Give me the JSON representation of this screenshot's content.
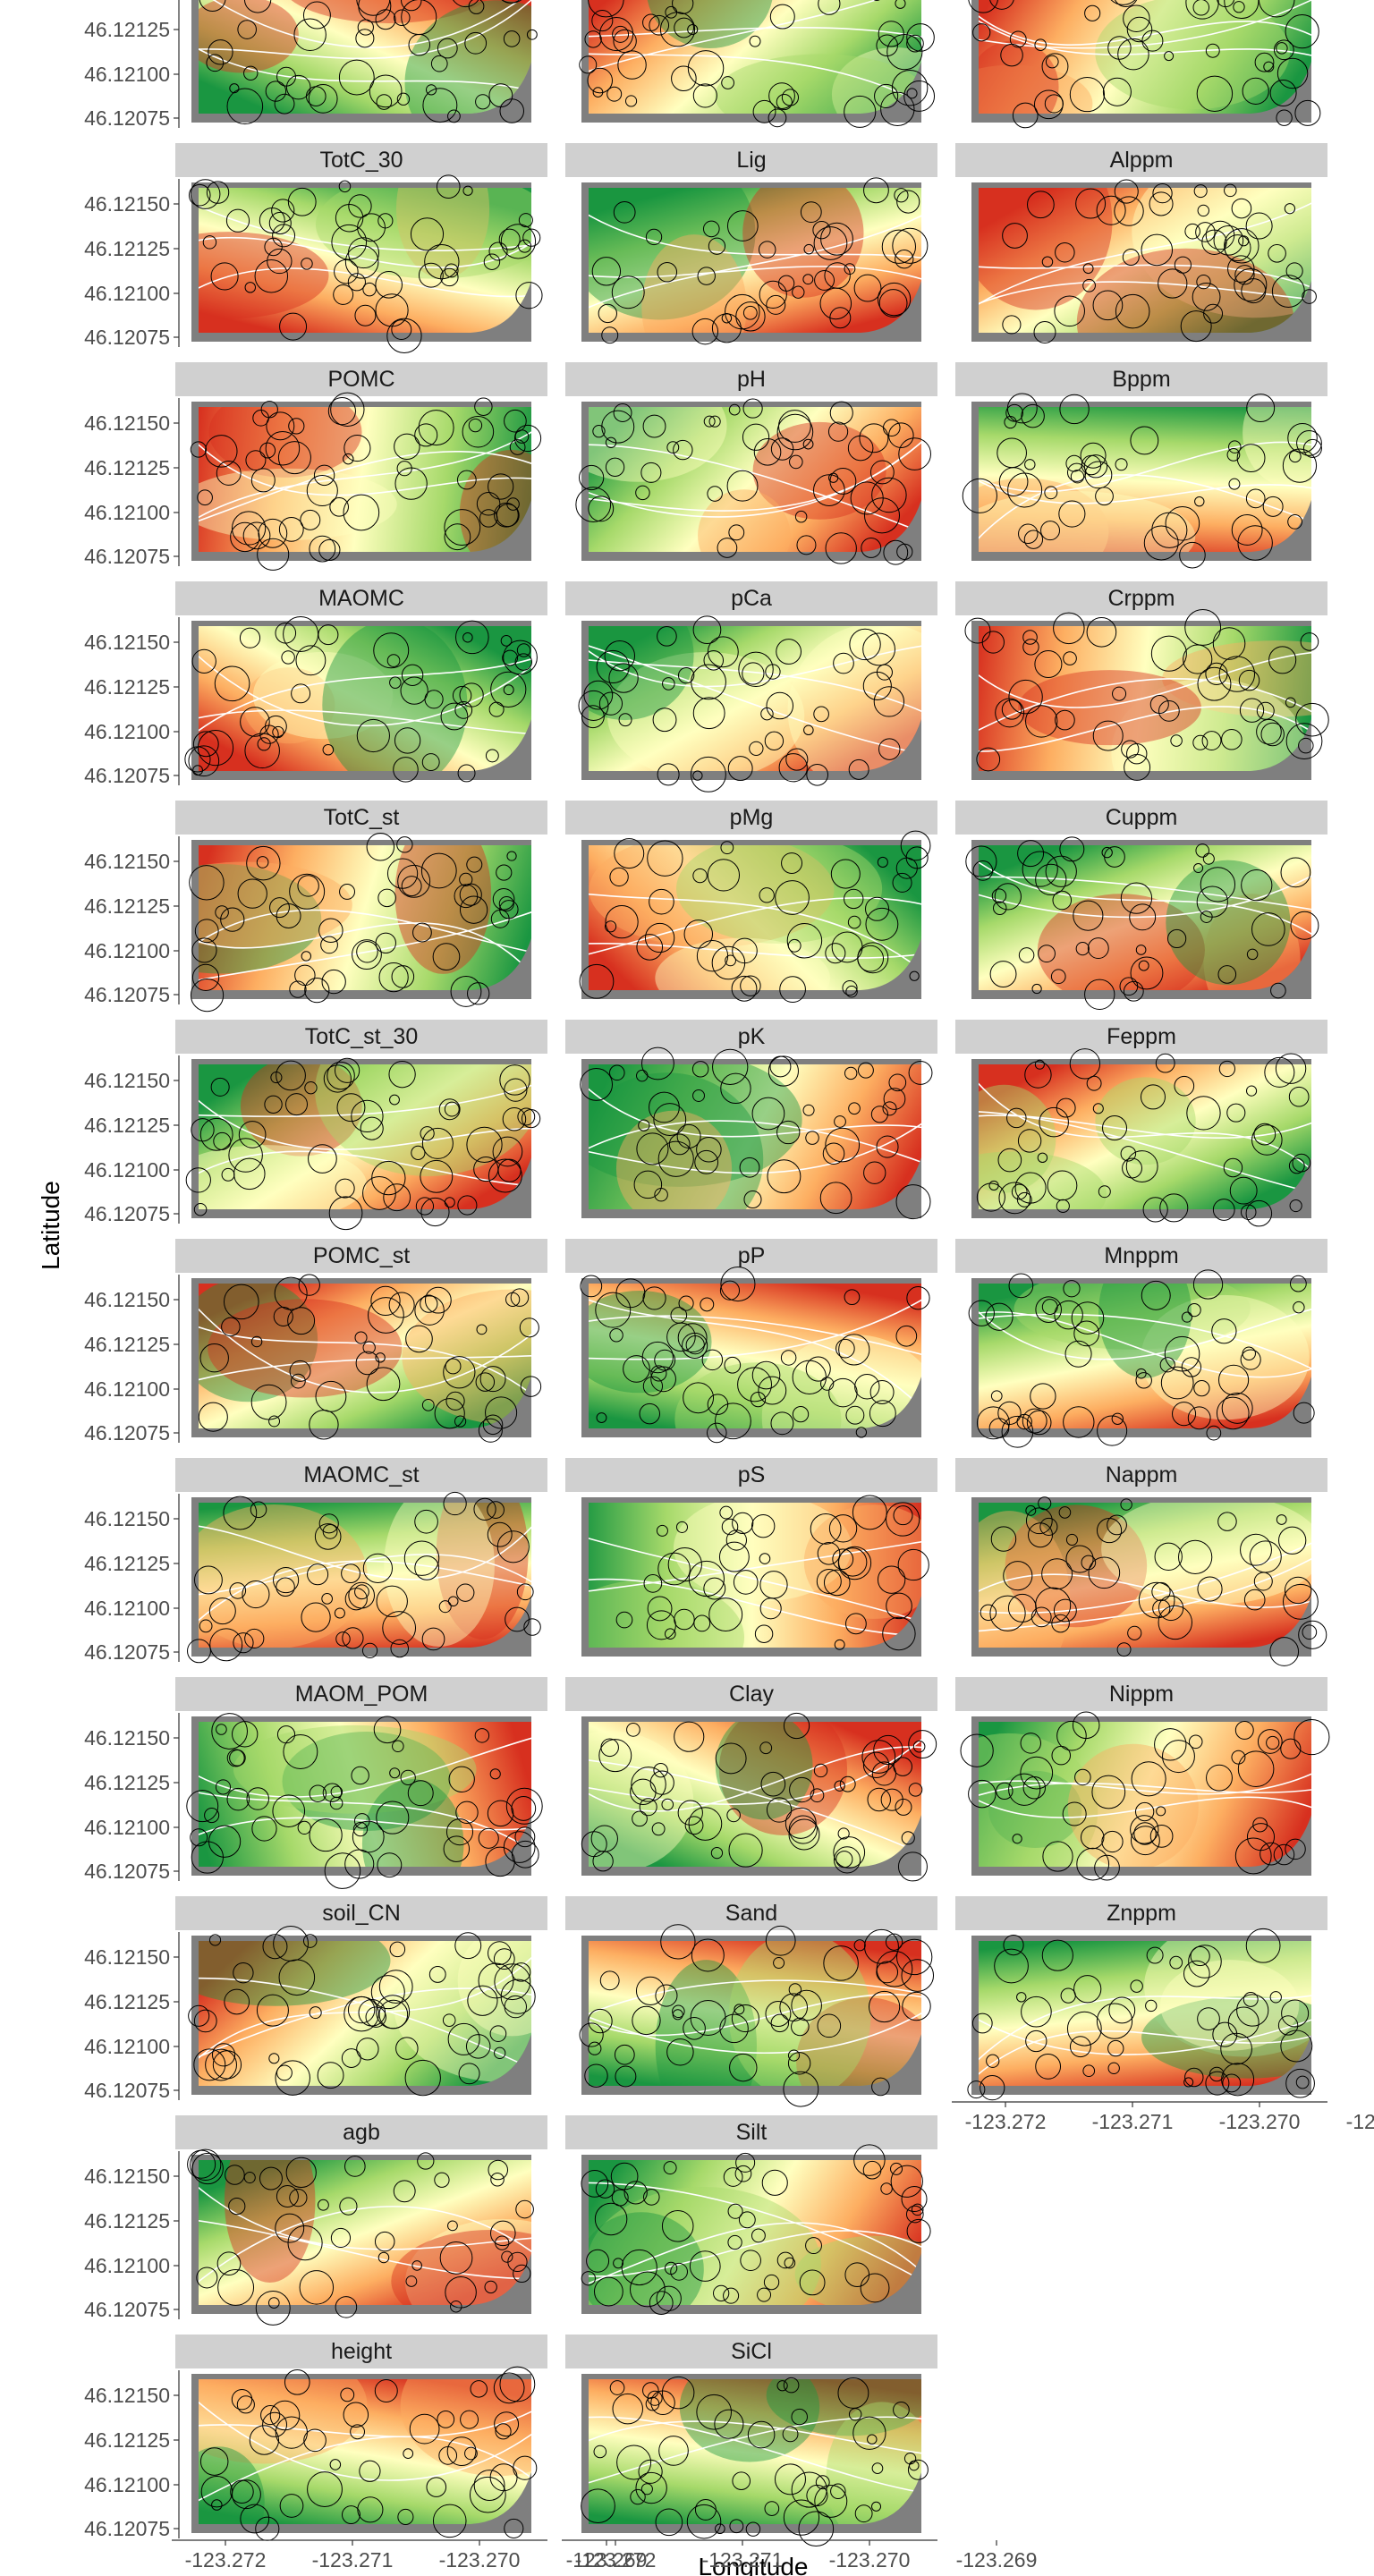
{
  "chart_data": {
    "type": "heatmap",
    "title": "",
    "xlabel": "Longitude",
    "ylabel": "Latitude",
    "x_ticks": [
      "-123.272",
      "-123.271",
      "-123.270",
      "-123.269"
    ],
    "y_ticks": [
      "46.12150",
      "46.12125",
      "46.12100",
      "46.12075"
    ],
    "xlim": [
      -123.2725,
      -123.2685
    ],
    "ylim": [
      46.1207,
      46.12165
    ],
    "grid": false,
    "legend": "none",
    "colors": {
      "low": "#d7301f",
      "mid_low": "#fdae61",
      "mid": "#ffffbf",
      "mid_high": "#a6d96a",
      "high": "#1a9641",
      "contour": "#ffffff",
      "mask": "#7f7f7f",
      "strip": "#d0d0d0",
      "point": "#000000"
    },
    "columns": [
      [
        "",
        "TotC_30",
        "POMC",
        "MAOMC",
        "TotC_st",
        "TotC_st_30",
        "POMC_st",
        "MAOMC_st",
        "MAOM_POM",
        "soil_CN",
        "agb",
        "height"
      ],
      [
        "",
        "Lig",
        "pH",
        "pCa",
        "pMg",
        "pK",
        "pP",
        "pS",
        "Clay",
        "Sand",
        "Silt",
        "SiCl"
      ],
      [
        "",
        "Alppm",
        "Bppm",
        "Crppm",
        "Cuppm",
        "Feppm",
        "Mnppm",
        "Nappm",
        "Nippm",
        "Znppm"
      ]
    ]
  }
}
